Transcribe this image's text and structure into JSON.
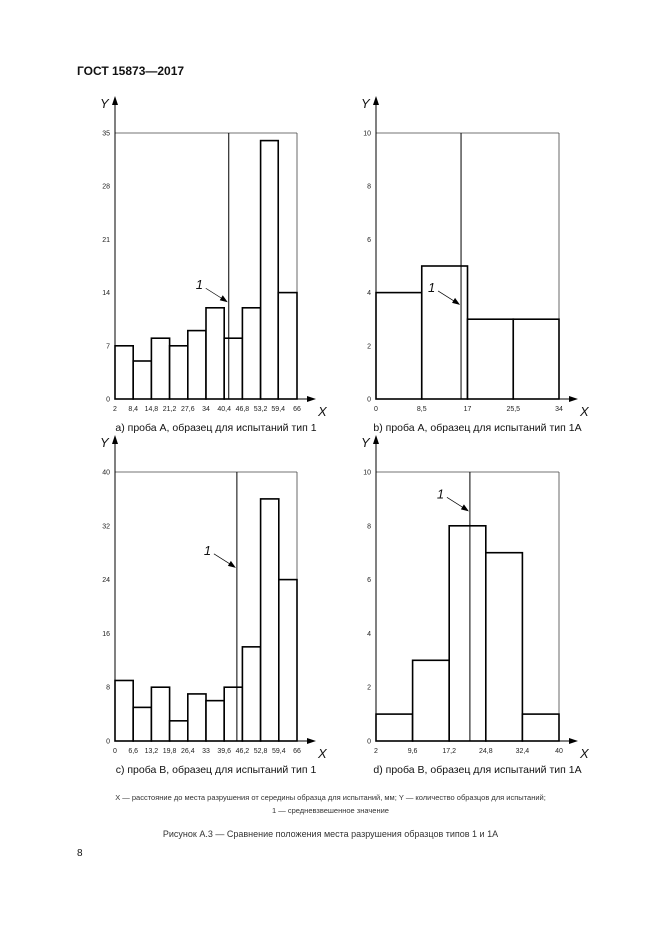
{
  "header": {
    "title": "ГОСТ 15873—2017"
  },
  "legend": {
    "line1": "X — расстояние до места разрушения от середины образца для испытаний, мм; Y — количество образцов для испытаний;",
    "line2": "1 — средневзвешенное значение"
  },
  "figure_caption": "Рисунок   А.3 — Сравнение положения места разрушения образцов типов 1 и 1А",
  "page_number": "8",
  "chart_data": [
    {
      "type": "bar",
      "caption": "a) проба A, образец для испытаний тип 1",
      "xlabel": "X",
      "ylabel": "Y",
      "bin_edges": [
        2,
        8.4,
        14.8,
        21.2,
        27.6,
        34,
        40.4,
        46.8,
        53.2,
        59.4,
        66
      ],
      "x_tick_labels": [
        "2",
        "8,4",
        "14,8",
        "21,2",
        "27,6",
        "34",
        "40,4",
        "46,8",
        "53,2",
        "59,4",
        "66"
      ],
      "values": [
        7,
        5,
        8,
        7,
        9,
        12,
        8,
        12,
        34,
        14
      ],
      "yticks": [
        0,
        7,
        14,
        21,
        28,
        35
      ],
      "ylim": [
        0,
        35
      ],
      "xlim": [
        2,
        66
      ],
      "mean_line": 42,
      "mean_label": "1"
    },
    {
      "type": "bar",
      "caption": "b) проба A, образец для испытаний тип 1А",
      "xlabel": "X",
      "ylabel": "Y",
      "bin_edges": [
        0,
        8.5,
        17,
        25.5,
        34
      ],
      "x_tick_labels": [
        "0",
        "8,5",
        "17",
        "25,5",
        "34"
      ],
      "values": [
        4,
        5,
        3,
        3
      ],
      "yticks": [
        0,
        2,
        4,
        6,
        8,
        10
      ],
      "ylim": [
        0,
        10
      ],
      "xlim": [
        0,
        34
      ],
      "mean_line": 15.8,
      "mean_label": "1"
    },
    {
      "type": "bar",
      "caption": "c) проба B, образец для испытаний тип 1",
      "xlabel": "X",
      "ylabel": "Y",
      "bin_edges": [
        0,
        6.6,
        13.2,
        19.8,
        26.4,
        33,
        39.6,
        46.2,
        52.8,
        59.4,
        66
      ],
      "x_tick_labels": [
        "0",
        "6,6",
        "13,2",
        "19,8",
        "26,4",
        "33",
        "39,6",
        "46,2",
        "52,8",
        "59,4",
        "66"
      ],
      "values": [
        9,
        5,
        8,
        3,
        7,
        6,
        8,
        14,
        36,
        24
      ],
      "yticks": [
        0,
        8,
        16,
        24,
        32,
        40
      ],
      "ylim": [
        0,
        40
      ],
      "xlim": [
        0,
        66
      ],
      "mean_line": 44.2,
      "mean_label": "1"
    },
    {
      "type": "bar",
      "caption": "d) проба B, образец для испытаний тип 1А",
      "xlabel": "X",
      "ylabel": "Y",
      "bin_edges": [
        2,
        9.6,
        17.2,
        24.8,
        32.4,
        40
      ],
      "x_tick_labels": [
        "2",
        "9,6",
        "17,2",
        "24,8",
        "32,4",
        "40"
      ],
      "values": [
        1,
        3,
        8,
        7,
        1
      ],
      "yticks": [
        0,
        2,
        4,
        6,
        8,
        10
      ],
      "ylim": [
        0,
        10
      ],
      "xlim": [
        2,
        40
      ],
      "mean_line": 21.5,
      "mean_label": "1"
    }
  ]
}
